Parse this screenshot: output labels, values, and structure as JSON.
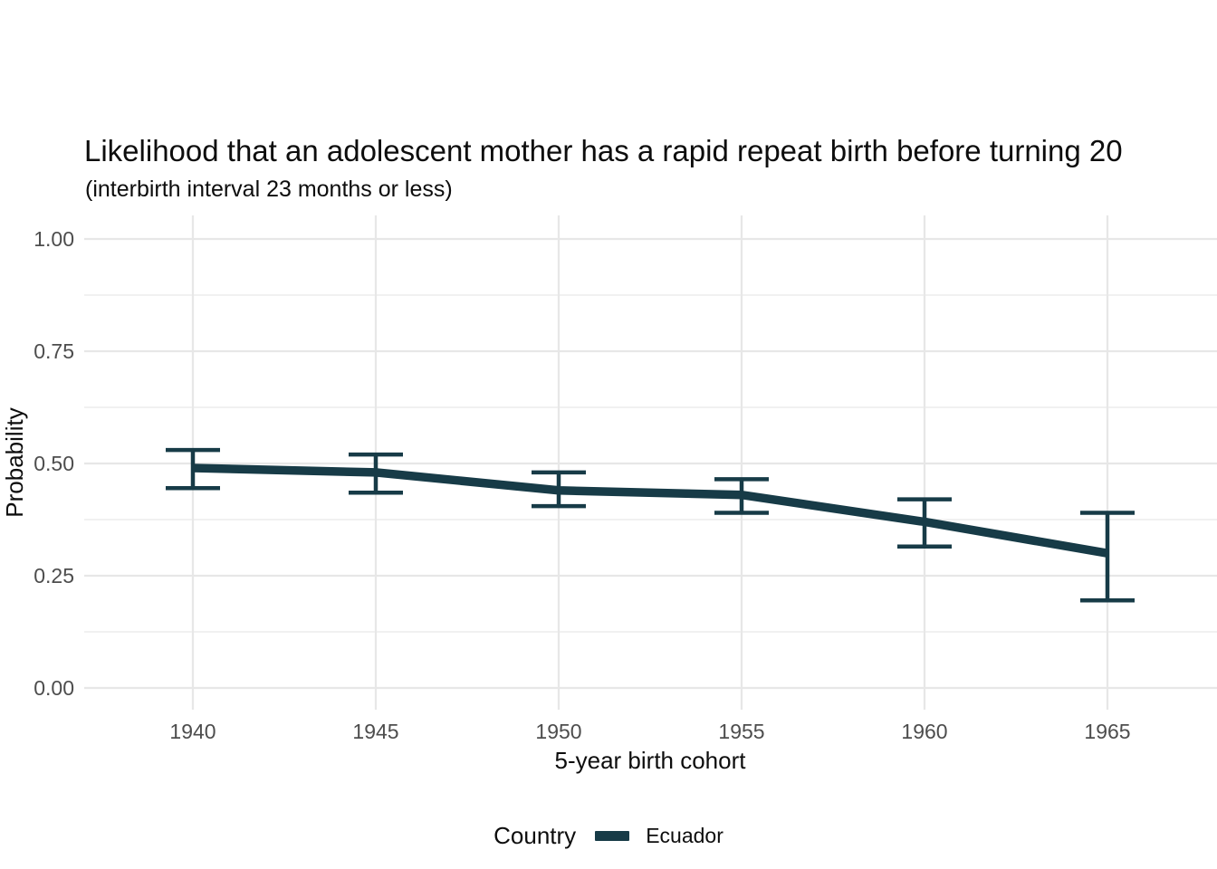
{
  "chart_data": {
    "type": "line",
    "title": "Likelihood that an adolescent mother has a rapid repeat birth before turning 20",
    "subtitle": "(interbirth interval 23 months or less)",
    "xlabel": "5-year birth cohort",
    "ylabel": "Probability",
    "x": [
      1940,
      1945,
      1950,
      1955,
      1960,
      1965
    ],
    "x_tick_labels": [
      "1940",
      "1945",
      "1950",
      "1955",
      "1960",
      "1965"
    ],
    "y_ticks": [
      0.0,
      0.25,
      0.5,
      0.75,
      1.0
    ],
    "y_tick_labels": [
      "0.00",
      "0.25",
      "0.50",
      "0.75",
      "1.00"
    ],
    "y_minor_ticks": [
      0.125,
      0.375,
      0.625,
      0.875
    ],
    "ylim": [
      0,
      1
    ],
    "grid": "major-x, major-y, minor-y, no axis lines (theme_minimal)",
    "legend_position": "bottom",
    "series": [
      {
        "name": "Ecuador",
        "color": "#173B47",
        "values": [
          0.49,
          0.48,
          0.44,
          0.43,
          0.37,
          0.3
        ],
        "ci_lower": [
          0.445,
          0.435,
          0.405,
          0.39,
          0.315,
          0.195
        ],
        "ci_upper": [
          0.53,
          0.52,
          0.48,
          0.465,
          0.42,
          0.39
        ]
      }
    ],
    "error_bars": true,
    "legend": {
      "title": "Country",
      "entries": [
        {
          "label": "Ecuador",
          "color": "#173B47"
        }
      ]
    }
  }
}
